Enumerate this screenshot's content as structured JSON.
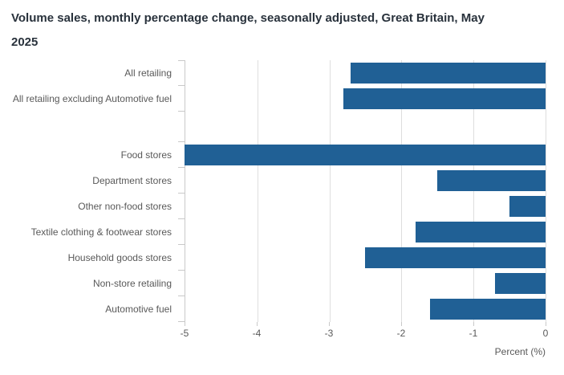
{
  "title": "Volume sales, monthly percentage change, seasonally adjusted, Great Britain, May 2025",
  "chart_data": {
    "type": "bar",
    "orientation": "horizontal",
    "title": "Volume sales, monthly percentage change, seasonally adjusted, Great Britain, May 2025",
    "categories": [
      "All retailing",
      "All retailing excluding Automotive fuel",
      "Food stores",
      "Department stores",
      "Other non-food stores",
      "Textile clothing & footwear stores",
      "Household goods stores",
      "Non-store retailing",
      "Automotive fuel"
    ],
    "values": [
      -2.7,
      -2.8,
      -5.0,
      -1.5,
      -0.5,
      -1.8,
      -2.5,
      -0.7,
      -1.6
    ],
    "gap_before_index": 2,
    "xlabel": "Percent (%)",
    "ylabel": "",
    "xlim": [
      -5,
      0
    ],
    "xticks": [
      -5,
      -4,
      -3,
      -2,
      -1,
      0
    ],
    "xtick_labels": [
      "-5",
      "-4",
      "-3",
      "-2",
      "-1",
      "0"
    ],
    "grid": true,
    "legend": false,
    "bar_color": "#206095",
    "gridline_color": "#dedede",
    "axis_color": "#c9c9c9",
    "label_color": "#595959",
    "title_color": "#29323c"
  }
}
